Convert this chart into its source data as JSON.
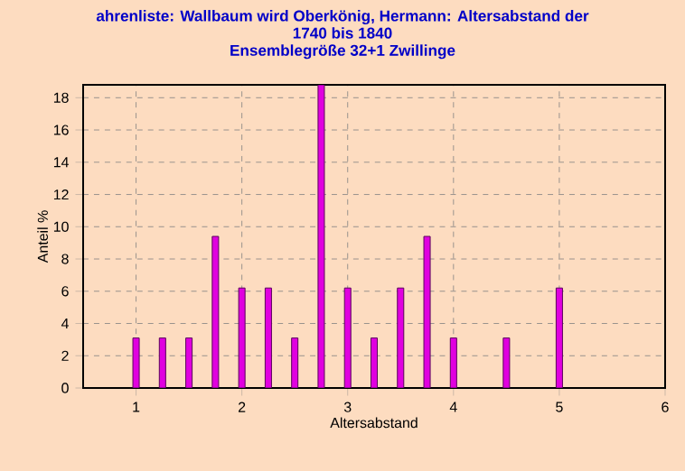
{
  "chart_data": {
    "type": "bar",
    "title": [
      "ahrenliste: Wallbaum wird Oberkönig, Hermann: Altersabstand der",
      "1740 bis 1840",
      "Ensemblegröße 32+1 Zwillinge"
    ],
    "xlabel": "Altersabstand",
    "ylabel": "Anteil %",
    "x": [
      1,
      1.25,
      1.5,
      1.75,
      2,
      2.25,
      2.5,
      2.75,
      3,
      3.25,
      3.5,
      3.75,
      4,
      4.5,
      5
    ],
    "values": [
      3.1,
      3.1,
      3.1,
      9.4,
      6.2,
      6.2,
      3.1,
      18.8,
      6.2,
      3.1,
      6.2,
      9.4,
      3.1,
      3.1,
      6.2
    ],
    "color": "#e000e0",
    "xlim": [
      0.5,
      6
    ],
    "ylim": [
      0,
      18.8
    ],
    "xticks": [
      1,
      2,
      3,
      4,
      5,
      6
    ],
    "yticks": [
      0,
      2,
      4,
      6,
      8,
      10,
      12,
      14,
      16,
      18
    ],
    "grid": true
  }
}
